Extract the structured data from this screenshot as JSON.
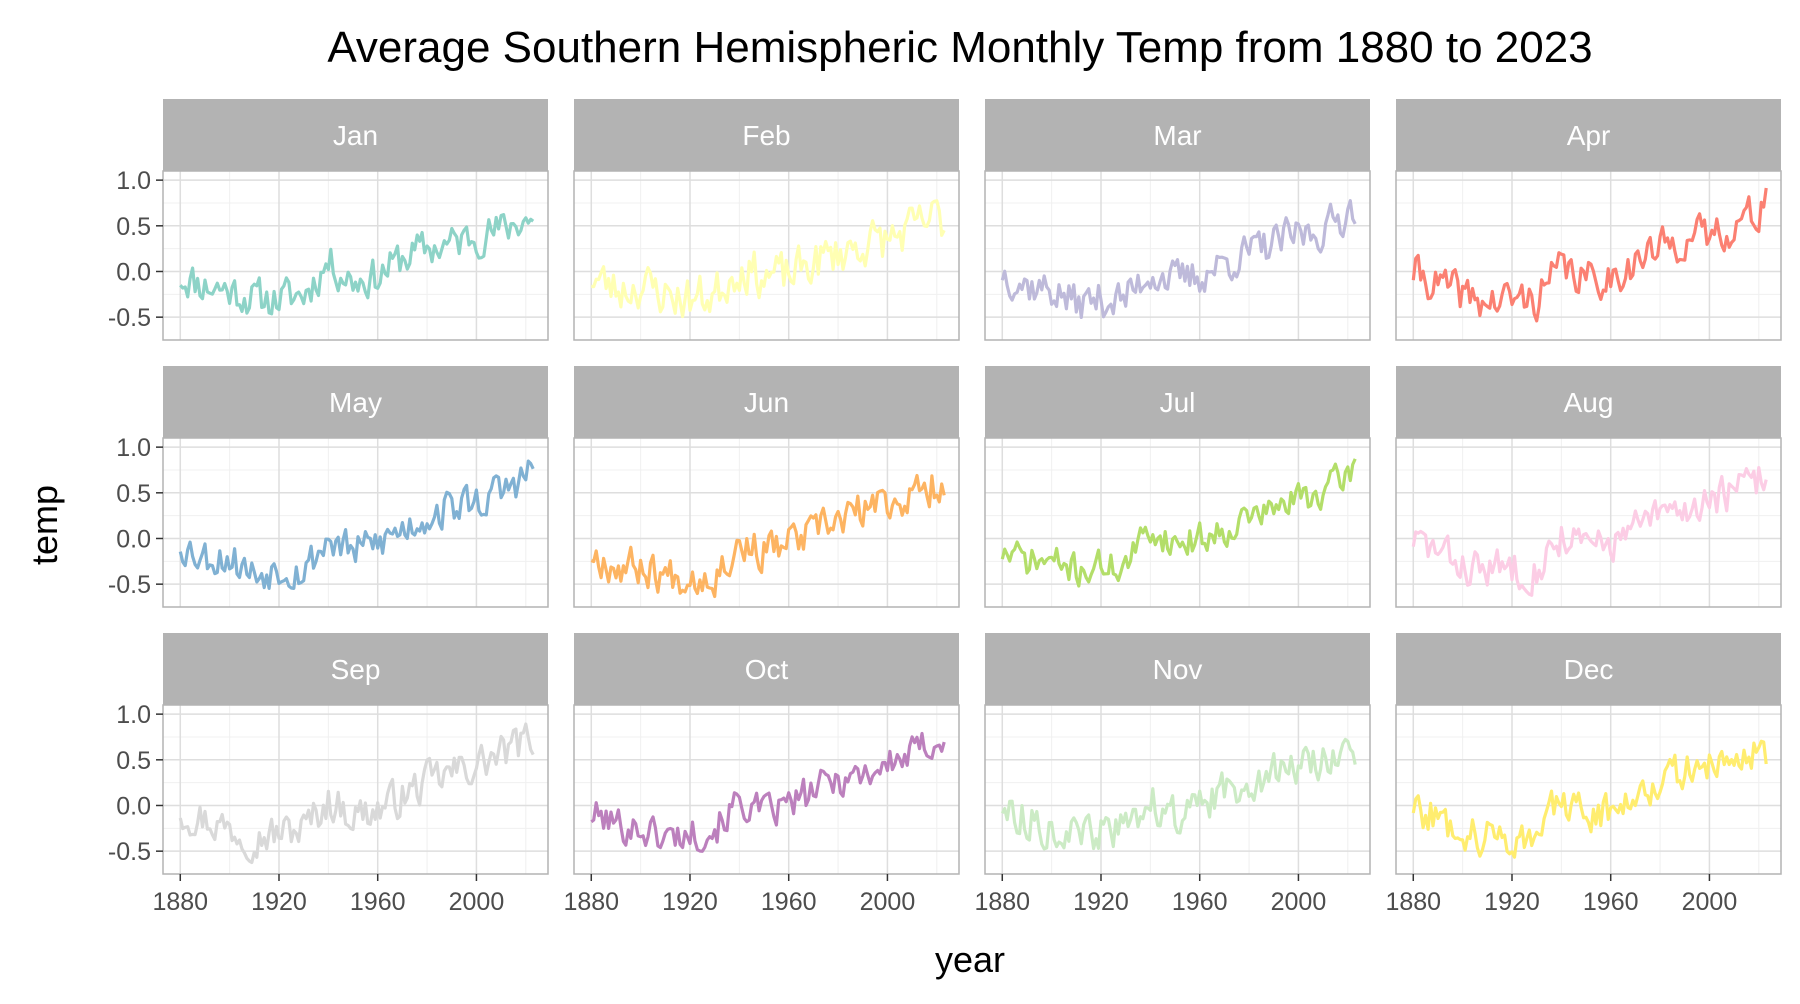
{
  "chart_data": {
    "type": "line",
    "title": "Average Southern Hemispheric Monthly Temp from 1880 to 2023",
    "xlabel": "year",
    "ylabel": "temp",
    "xlim": [
      1873,
      2029
    ],
    "ylim": [
      -0.75,
      1.1
    ],
    "x_ticks": [
      1880,
      1920,
      1960,
      2000
    ],
    "y_ticks": [
      1.0,
      0.5,
      0.0,
      -0.5
    ],
    "y_tick_labels": [
      "1.0",
      "0.5",
      "0.0",
      "-0.5"
    ],
    "grid": true,
    "legend": "none",
    "anchor_years": [
      1880,
      1890,
      1900,
      1910,
      1920,
      1930,
      1940,
      1950,
      1960,
      1970,
      1980,
      1990,
      2000,
      2010,
      2020,
      2023
    ],
    "panels": [
      {
        "name": "Jan",
        "color": "#8DD3C7",
        "trend": [
          -0.05,
          -0.15,
          -0.2,
          -0.3,
          -0.3,
          -0.25,
          0.1,
          -0.1,
          -0.05,
          0.15,
          0.25,
          0.3,
          0.4,
          0.45,
          0.6,
          0.5
        ],
        "amp": 0.12,
        "seed": 11
      },
      {
        "name": "Feb",
        "color": "#FFFFB3",
        "trend": [
          -0.05,
          -0.2,
          -0.15,
          -0.25,
          -0.3,
          -0.25,
          0.05,
          -0.05,
          -0.05,
          0.1,
          0.2,
          0.3,
          0.35,
          0.45,
          0.6,
          0.55
        ],
        "amp": 0.14,
        "seed": 23
      },
      {
        "name": "Mar",
        "color": "#BEBADA",
        "trend": [
          0.0,
          -0.15,
          -0.2,
          -0.35,
          -0.3,
          -0.3,
          0.0,
          -0.1,
          -0.05,
          0.1,
          0.2,
          0.3,
          0.4,
          0.45,
          0.65,
          0.75
        ],
        "amp": 0.12,
        "seed": 37
      },
      {
        "name": "Apr",
        "color": "#FB8072",
        "trend": [
          0.0,
          -0.15,
          -0.25,
          -0.35,
          -0.3,
          -0.3,
          0.05,
          -0.1,
          -0.05,
          0.1,
          0.25,
          0.35,
          0.4,
          0.5,
          0.65,
          0.9
        ],
        "amp": 0.12,
        "seed": 41
      },
      {
        "name": "May",
        "color": "#80B1D3",
        "trend": [
          -0.05,
          -0.2,
          -0.2,
          -0.4,
          -0.3,
          -0.35,
          0.0,
          -0.15,
          -0.05,
          0.1,
          0.25,
          0.35,
          0.4,
          0.5,
          0.7,
          0.75
        ],
        "amp": 0.12,
        "seed": 53
      },
      {
        "name": "Jun",
        "color": "#FDB462",
        "trend": [
          -0.15,
          -0.3,
          -0.3,
          -0.4,
          -0.4,
          -0.4,
          -0.05,
          -0.15,
          -0.05,
          0.05,
          0.2,
          0.3,
          0.4,
          0.45,
          0.6,
          0.65
        ],
        "amp": 0.12,
        "seed": 67
      },
      {
        "name": "Jul",
        "color": "#B3DE69",
        "trend": [
          -0.15,
          -0.25,
          -0.25,
          -0.35,
          -0.3,
          -0.3,
          0.1,
          -0.05,
          0.0,
          0.1,
          0.25,
          0.3,
          0.45,
          0.5,
          0.7,
          0.8
        ],
        "amp": 0.1,
        "seed": 71
      },
      {
        "name": "Aug",
        "color": "#FCCDE5",
        "trend": [
          0.0,
          -0.15,
          -0.3,
          -0.35,
          -0.3,
          -0.35,
          0.05,
          -0.1,
          -0.05,
          0.1,
          0.25,
          0.3,
          0.45,
          0.5,
          0.65,
          0.7
        ],
        "amp": 0.12,
        "seed": 83
      },
      {
        "name": "Sep",
        "color": "#D9D9D9",
        "trend": [
          -0.05,
          -0.15,
          -0.25,
          -0.35,
          -0.3,
          -0.25,
          0.05,
          -0.1,
          -0.05,
          0.1,
          0.25,
          0.35,
          0.45,
          0.55,
          0.7,
          0.75
        ],
        "amp": 0.12,
        "seed": 97
      },
      {
        "name": "Oct",
        "color": "#BC80BD",
        "trend": [
          -0.1,
          -0.2,
          -0.25,
          -0.35,
          -0.3,
          -0.25,
          0.05,
          -0.1,
          0.0,
          0.15,
          0.3,
          0.35,
          0.45,
          0.55,
          0.75,
          0.65
        ],
        "amp": 0.11,
        "seed": 101
      },
      {
        "name": "Nov",
        "color": "#CCEBC5",
        "trend": [
          0.0,
          -0.15,
          -0.25,
          -0.35,
          -0.3,
          -0.25,
          0.05,
          -0.1,
          -0.05,
          0.15,
          0.3,
          0.35,
          0.45,
          0.5,
          0.65,
          0.4
        ],
        "amp": 0.12,
        "seed": 113
      },
      {
        "name": "Dec",
        "color": "#FFED6F",
        "trend": [
          0.0,
          -0.15,
          -0.25,
          -0.35,
          -0.35,
          -0.3,
          0.05,
          -0.1,
          -0.05,
          0.15,
          0.3,
          0.35,
          0.45,
          0.5,
          0.65,
          0.55
        ],
        "amp": 0.12,
        "seed": 127
      }
    ]
  }
}
